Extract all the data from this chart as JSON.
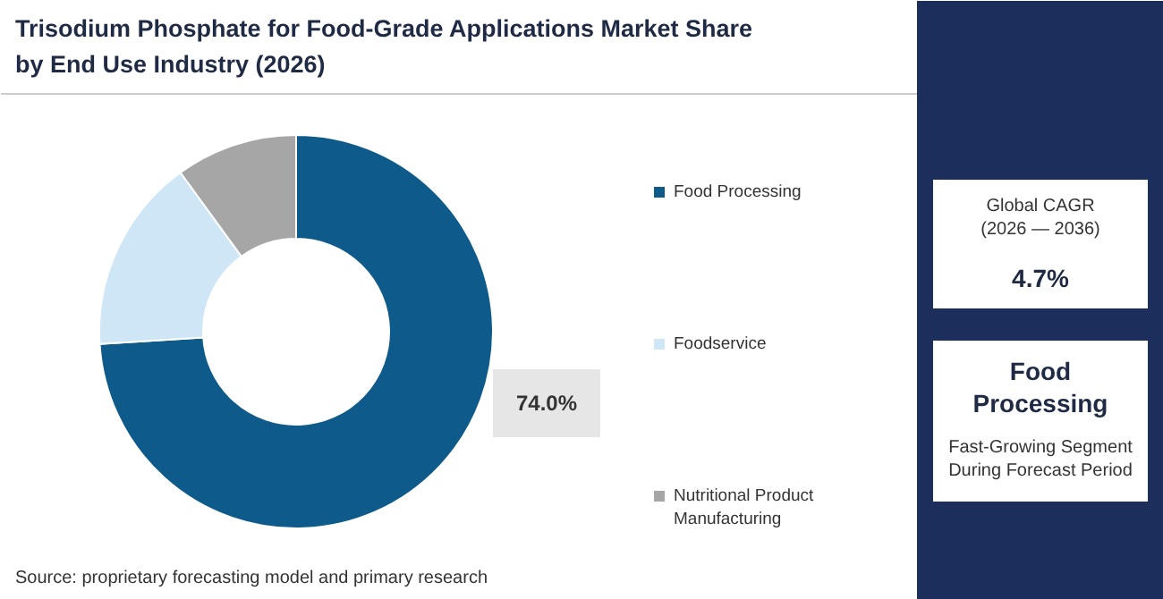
{
  "chart_data": {
    "type": "donut",
    "title": "Trisodium Phosphate for Food-Grade Applications Market Share by End Use Industry (2026)",
    "categories": [
      "Food Processing",
      "Foodservice",
      "Nutritional Product Manufacturing"
    ],
    "values": [
      74.0,
      16.0,
      10.0
    ],
    "colors": [
      "#0e5a8a",
      "#cfe6f6",
      "#a6a6a6"
    ],
    "value_labels": [
      "74.0%",
      null,
      null
    ],
    "legend": "right",
    "annotations": [
      "Source: proprietary forecasting model and primary research",
      "Global CAGR\n(2026 — 2036)",
      "4.7%",
      "Food\nProcessing",
      "Fast-Growing Segment\nDuring Forecast Period"
    ]
  }
}
